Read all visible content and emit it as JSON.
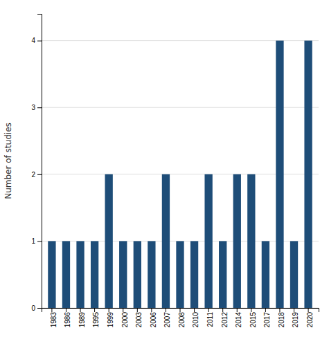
{
  "chart_data": {
    "type": "bar",
    "categories": [
      "1983",
      "1986",
      "1989",
      "1995",
      "1999",
      "2000",
      "2003",
      "2006",
      "2007",
      "2008",
      "2010",
      "2011",
      "2012",
      "2014",
      "2015",
      "2017",
      "2018",
      "2019",
      "2020"
    ],
    "values": [
      1,
      1,
      1,
      1,
      2,
      1,
      1,
      1,
      2,
      1,
      1,
      2,
      1,
      2,
      2,
      1,
      4,
      1,
      4
    ],
    "color": "#1e4d78",
    "ylabel": "Number of studies",
    "ylim": [
      0,
      4.4
    ],
    "yticks": [
      0,
      1,
      2,
      3,
      4
    ],
    "grid": true
  }
}
